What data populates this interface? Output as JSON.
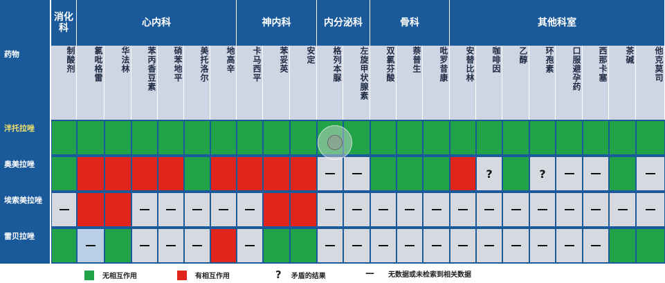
{
  "corner_label": "药物",
  "groups": [
    "消化科",
    "心内科",
    "神内科",
    "内分泌科",
    "骨科",
    "其他科室"
  ],
  "drugs": [
    "制酸剂",
    "氯吡格雷",
    "华法林",
    "苯丙香豆素",
    "硝苯地平",
    "美托洛尔",
    "地高辛",
    "卡马西平",
    "苯妥英",
    "安定",
    "格列本脲",
    "左旋甲状腺素",
    "双氯芬酸",
    "萘普生",
    "吡罗昔康",
    "安替比林",
    "咖啡因",
    "乙醇",
    "环孢素",
    "口服避孕药",
    "西那卡塞",
    "茶碱",
    "他克莫司"
  ],
  "rows": [
    {
      "label": "泮托拉唑",
      "cells": [
        "g",
        "g",
        "g",
        "g",
        "g",
        "g",
        "g",
        "g",
        "g",
        "g",
        "g",
        "g",
        "g",
        "g",
        "g",
        "g",
        "g",
        "g",
        "g",
        "g",
        "g",
        "g",
        "g"
      ]
    },
    {
      "label": "奥美拉唑",
      "cells": [
        "g",
        "r",
        "r",
        "r",
        "r",
        "g",
        "r",
        "r",
        "r",
        "r",
        "-",
        "-",
        "g",
        "g",
        "g",
        "r",
        "?",
        "g",
        "?",
        "-",
        "-",
        "g",
        "-"
      ]
    },
    {
      "label": "埃索美拉唑",
      "cells": [
        "-",
        "r",
        "r",
        "-",
        "-",
        "-",
        "-",
        "-",
        "r",
        "r",
        "-",
        "-",
        "-",
        "-",
        "-",
        "-",
        "-",
        "-",
        "-",
        "-",
        "-",
        "-",
        "-"
      ]
    },
    {
      "label": "雷贝拉唑",
      "cells": [
        "g",
        "lb-",
        "g",
        "-",
        "-",
        "-",
        "r",
        "-",
        "g",
        "g",
        "-",
        "-",
        "-",
        "-",
        "-",
        "-",
        "-",
        "-",
        "-",
        "-",
        "-",
        "g",
        "g"
      ]
    }
  ],
  "legend": {
    "no_interaction": "无相互作用",
    "interaction": "有相互作用",
    "question_mark": "?",
    "contradictory": "矛盾的结果",
    "dash_symbol": "—",
    "no_data": "无数据或未检索到相关数据"
  },
  "colors": {
    "header_blue": "#1a5a9b",
    "green": "#22a34a",
    "red": "#e0261c",
    "neutral": "#d6d9e0"
  }
}
